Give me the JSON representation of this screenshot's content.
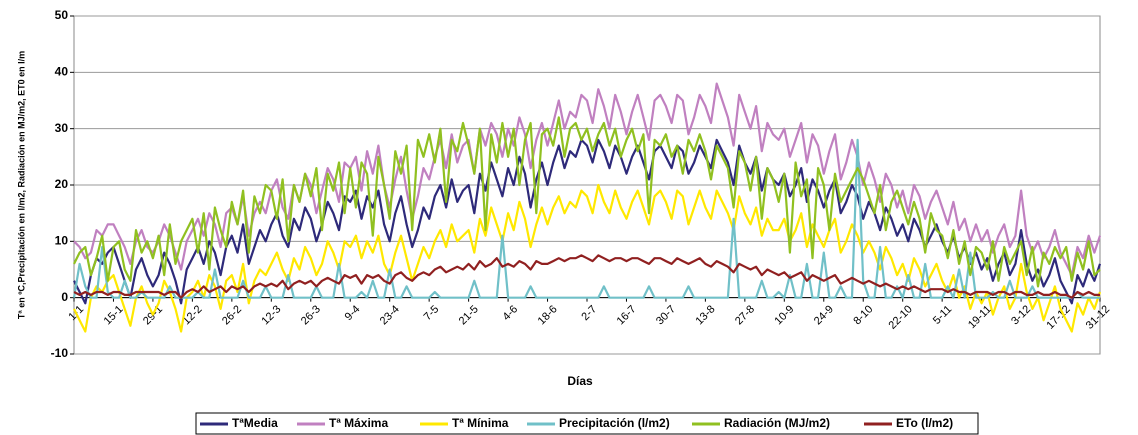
{
  "chart_data": {
    "type": "line",
    "xlabel": "Días",
    "ylabel": "Tª en ºC,Precipitación en l/m2, Radiación en MJ/m2, ET0 en l/m",
    "ylim": [
      -10,
      50
    ],
    "yticks": [
      -10,
      0,
      10,
      20,
      30,
      40,
      50
    ],
    "grid": true,
    "legend": "bottom",
    "categories": [
      "1-1",
      null,
      null,
      null,
      null,
      null,
      null,
      "15-1",
      null,
      null,
      null,
      null,
      null,
      null,
      "29-1",
      null,
      null,
      null,
      null,
      null,
      null,
      "12-2",
      null,
      null,
      null,
      null,
      null,
      null,
      "26-2",
      null,
      null,
      null,
      null,
      null,
      null,
      "12-3",
      null,
      null,
      null,
      null,
      null,
      null,
      "26-3",
      null,
      null,
      null,
      null,
      null,
      null,
      "9-4",
      null,
      null,
      null,
      null,
      null,
      null,
      "23-4",
      null,
      null,
      null,
      null,
      null,
      null,
      "7-5",
      null,
      null,
      null,
      null,
      null,
      null,
      "21-5",
      null,
      null,
      null,
      null,
      null,
      null,
      "4-6",
      null,
      null,
      null,
      null,
      null,
      null,
      "18-6",
      null,
      null,
      null,
      null,
      null,
      null,
      "2-7",
      null,
      null,
      null,
      null,
      null,
      null,
      "16-7",
      null,
      null,
      null,
      null,
      null,
      null,
      "30-7",
      null,
      null,
      null,
      null,
      null,
      null,
      "13-8",
      null,
      null,
      null,
      null,
      null,
      null,
      "27-8",
      null,
      null,
      null,
      null,
      null,
      null,
      "10-9",
      null,
      null,
      null,
      null,
      null,
      null,
      "24-9",
      null,
      null,
      null,
      null,
      null,
      null,
      "8-10",
      null,
      null,
      null,
      null,
      null,
      null,
      "22-10",
      null,
      null,
      null,
      null,
      null,
      null,
      "5-11",
      null,
      null,
      null,
      null,
      null,
      null,
      "19-11",
      null,
      null,
      null,
      null,
      null,
      null,
      "3-12",
      null,
      null,
      null,
      null,
      null,
      null,
      "17-12",
      null,
      null,
      null,
      null,
      null,
      null,
      "31-12"
    ],
    "series": [
      {
        "name": "TªMedia",
        "color": "#2e2a7a",
        "values": [
          3,
          1,
          -1,
          4,
          7,
          6,
          8,
          9,
          6,
          3,
          0,
          5,
          7,
          4,
          2,
          4,
          8,
          6,
          3,
          -1,
          5,
          7,
          9,
          6,
          10,
          8,
          4,
          9,
          11,
          8,
          13,
          6,
          9,
          12,
          10,
          13,
          15,
          11,
          9,
          14,
          12,
          16,
          14,
          10,
          13,
          17,
          15,
          12,
          18,
          17,
          19,
          14,
          18,
          16,
          19,
          13,
          10,
          15,
          18,
          13,
          9,
          12,
          16,
          14,
          18,
          20,
          16,
          21,
          17,
          19,
          20,
          15,
          22,
          19,
          24,
          21,
          18,
          23,
          20,
          25,
          22,
          16,
          21,
          24,
          20,
          24,
          27,
          23,
          26,
          25,
          28,
          27,
          24,
          28,
          26,
          23,
          27,
          25,
          22,
          25,
          27,
          24,
          21,
          26,
          27,
          25,
          23,
          27,
          26,
          22,
          24,
          27,
          25,
          23,
          28,
          26,
          24,
          20,
          27,
          24,
          22,
          25,
          19,
          23,
          21,
          20,
          22,
          18,
          20,
          23,
          17,
          21,
          19,
          16,
          19,
          21,
          15,
          17,
          20,
          18,
          14,
          17,
          15,
          12,
          16,
          14,
          11,
          13,
          10,
          14,
          12,
          9,
          11,
          13,
          10,
          8,
          11,
          7,
          9,
          6,
          8,
          5,
          7,
          3,
          6,
          8,
          4,
          6,
          12,
          6,
          3,
          5,
          2,
          4,
          7,
          3,
          1,
          -1,
          4,
          2,
          5,
          3,
          6
        ]
      },
      {
        "name": "Tª Máxima",
        "color": "#c080c0",
        "values": [
          10,
          9,
          7,
          8,
          12,
          11,
          13,
          13,
          11,
          9,
          6,
          10,
          12,
          9,
          8,
          10,
          13,
          11,
          8,
          5,
          10,
          12,
          14,
          11,
          15,
          13,
          9,
          15,
          16,
          13,
          18,
          11,
          15,
          17,
          15,
          19,
          21,
          16,
          14,
          20,
          17,
          22,
          20,
          15,
          19,
          23,
          21,
          17,
          24,
          23,
          25,
          19,
          26,
          22,
          27,
          20,
          16,
          21,
          25,
          19,
          14,
          18,
          23,
          21,
          25,
          28,
          23,
          29,
          24,
          27,
          28,
          22,
          30,
          27,
          31,
          29,
          25,
          30,
          27,
          32,
          29,
          23,
          28,
          31,
          27,
          31,
          35,
          30,
          33,
          32,
          36,
          35,
          31,
          37,
          34,
          30,
          36,
          33,
          29,
          33,
          36,
          32,
          28,
          35,
          36,
          34,
          31,
          36,
          35,
          29,
          32,
          36,
          34,
          31,
          38,
          35,
          32,
          27,
          36,
          33,
          30,
          34,
          26,
          31,
          29,
          28,
          30,
          25,
          28,
          31,
          24,
          29,
          27,
          22,
          26,
          29,
          21,
          24,
          28,
          25,
          20,
          24,
          21,
          17,
          22,
          20,
          16,
          19,
          15,
          20,
          18,
          14,
          17,
          19,
          16,
          13,
          17,
          12,
          14,
          10,
          13,
          10,
          12,
          8,
          11,
          13,
          9,
          11,
          19,
          11,
          8,
          10,
          7,
          9,
          12,
          8,
          6,
          4,
          9,
          7,
          11,
          8,
          11
        ]
      },
      {
        "name": "Tª Mínima",
        "color": "#ffe800",
        "values": [
          -2,
          -4,
          -6,
          0,
          2,
          1,
          3,
          4,
          1,
          -2,
          -5,
          0,
          2,
          -1,
          -3,
          -1,
          3,
          1,
          -2,
          -6,
          0,
          1,
          3,
          0,
          4,
          2,
          -2,
          3,
          4,
          1,
          6,
          -1,
          3,
          5,
          4,
          6,
          8,
          5,
          3,
          7,
          5,
          9,
          7,
          4,
          6,
          10,
          8,
          5,
          10,
          9,
          11,
          7,
          10,
          8,
          11,
          6,
          4,
          8,
          11,
          7,
          3,
          6,
          9,
          7,
          10,
          12,
          9,
          13,
          10,
          11,
          12,
          8,
          14,
          11,
          16,
          13,
          10,
          15,
          12,
          17,
          14,
          9,
          13,
          16,
          13,
          16,
          18,
          15,
          17,
          16,
          19,
          18,
          15,
          20,
          17,
          15,
          19,
          16,
          14,
          17,
          19,
          16,
          13,
          18,
          19,
          17,
          14,
          19,
          18,
          13,
          16,
          19,
          16,
          14,
          19,
          17,
          15,
          12,
          18,
          15,
          13,
          16,
          11,
          14,
          12,
          12,
          14,
          10,
          12,
          15,
          9,
          13,
          11,
          9,
          12,
          14,
          8,
          10,
          13,
          11,
          8,
          10,
          8,
          5,
          9,
          7,
          4,
          6,
          3,
          7,
          5,
          2,
          4,
          6,
          3,
          1,
          4,
          0,
          2,
          -2,
          1,
          -1,
          1,
          -3,
          0,
          2,
          -2,
          0,
          6,
          1,
          -2,
          0,
          -4,
          -1,
          2,
          -2,
          -4,
          -6,
          -1,
          -3,
          0,
          -2,
          1
        ]
      },
      {
        "name": "Precipitación (l/m2)",
        "color": "#70c0c8",
        "values": [
          0,
          6,
          2,
          0,
          0,
          9,
          1,
          0,
          0,
          3,
          0,
          0,
          1,
          0,
          0,
          0,
          0,
          2,
          0,
          0,
          0,
          0,
          1,
          0,
          0,
          5,
          0,
          0,
          0,
          0,
          3,
          0,
          0,
          0,
          2,
          0,
          0,
          0,
          4,
          0,
          0,
          0,
          0,
          2,
          0,
          0,
          0,
          6,
          0,
          0,
          0,
          1,
          0,
          3,
          0,
          0,
          5,
          0,
          0,
          2,
          0,
          0,
          0,
          0,
          1,
          0,
          0,
          0,
          0,
          0,
          0,
          3,
          0,
          0,
          0,
          0,
          11,
          0,
          0,
          0,
          0,
          2,
          0,
          0,
          0,
          0,
          0,
          0,
          0,
          0,
          0,
          0,
          0,
          0,
          2,
          0,
          0,
          0,
          0,
          0,
          0,
          0,
          2,
          0,
          0,
          0,
          0,
          0,
          0,
          2,
          0,
          0,
          0,
          0,
          0,
          0,
          0,
          14,
          0,
          0,
          0,
          0,
          3,
          0,
          0,
          1,
          0,
          4,
          0,
          0,
          6,
          0,
          0,
          8,
          0,
          0,
          2,
          0,
          0,
          28,
          3,
          0,
          0,
          9,
          0,
          0,
          2,
          0,
          4,
          0,
          0,
          6,
          0,
          0,
          0,
          2,
          0,
          5,
          0,
          8,
          0,
          0,
          0,
          1,
          0,
          0,
          3,
          0,
          0,
          0,
          2,
          0,
          0,
          0,
          0,
          0,
          0,
          0,
          1,
          0,
          0,
          0,
          0
        ]
      },
      {
        "name": "Radiación (MJ/m2)",
        "color": "#90c020",
        "values": [
          6,
          8,
          9,
          4,
          7,
          11,
          3,
          9,
          10,
          5,
          3,
          12,
          8,
          10,
          7,
          11,
          4,
          13,
          6,
          10,
          12,
          14,
          8,
          15,
          5,
          16,
          12,
          9,
          17,
          13,
          19,
          8,
          18,
          15,
          20,
          19,
          14,
          21,
          10,
          20,
          17,
          22,
          18,
          23,
          12,
          22,
          19,
          24,
          15,
          23,
          16,
          24,
          22,
          11,
          25,
          20,
          14,
          26,
          22,
          27,
          12,
          28,
          25,
          29,
          24,
          30,
          17,
          28,
          26,
          31,
          27,
          22,
          30,
          12,
          29,
          24,
          31,
          25,
          30,
          20,
          28,
          31,
          15,
          29,
          30,
          27,
          32,
          25,
          30,
          31,
          28,
          30,
          26,
          29,
          31,
          27,
          30,
          25,
          28,
          30,
          26,
          29,
          15,
          28,
          27,
          29,
          25,
          27,
          22,
          28,
          26,
          29,
          26,
          21,
          27,
          25,
          23,
          16,
          26,
          24,
          19,
          25,
          14,
          23,
          21,
          17,
          22,
          8,
          24,
          18,
          21,
          7,
          23,
          20,
          12,
          22,
          17,
          19,
          21,
          23,
          21,
          18,
          15,
          20,
          12,
          17,
          19,
          16,
          13,
          17,
          14,
          8,
          15,
          12,
          11,
          7,
          12,
          6,
          10,
          4,
          9,
          8,
          5,
          10,
          3,
          9,
          6,
          8,
          10,
          4,
          9,
          2,
          8,
          6,
          9,
          7,
          9,
          3,
          8,
          5,
          10,
          4,
          5
        ]
      },
      {
        "name": "ETo (l/m2)",
        "color": "#902020",
        "values": [
          1,
          0.5,
          1,
          0.5,
          1,
          1,
          0.5,
          1,
          1,
          0.5,
          0.5,
          1,
          1,
          1,
          1,
          1,
          0.5,
          1,
          1,
          0,
          1,
          1.5,
          1,
          2,
          1,
          1.5,
          2,
          1,
          2,
          1.5,
          2,
          1,
          2,
          2.5,
          2,
          2.5,
          2,
          3,
          1.5,
          2.5,
          3,
          2.5,
          3,
          2,
          3,
          3.5,
          3,
          2.5,
          4,
          3.5,
          4,
          2.5,
          4,
          3.5,
          4,
          3,
          2.5,
          4,
          4.5,
          3.5,
          3,
          4,
          4.5,
          4,
          5,
          5.5,
          4.5,
          5,
          5.5,
          5,
          6,
          5,
          6.5,
          5.5,
          6,
          7,
          5.5,
          6,
          5.5,
          6.5,
          6,
          5,
          6.5,
          6,
          6,
          6.5,
          7,
          6.5,
          7,
          7,
          7.5,
          7,
          6.5,
          7.5,
          7,
          6.5,
          7,
          7,
          6.5,
          7,
          7,
          6.5,
          6,
          7,
          7,
          6.5,
          6,
          7,
          6.5,
          6,
          6.5,
          7,
          6,
          5.5,
          6.5,
          6,
          5.5,
          4.5,
          6,
          5.5,
          5,
          5.5,
          4,
          5,
          4.5,
          4,
          4.5,
          3.5,
          4,
          4.5,
          3,
          4,
          3.5,
          3,
          3.5,
          4,
          2.5,
          3,
          3.5,
          3,
          2.5,
          3,
          2.5,
          2,
          2.5,
          2,
          1.5,
          2,
          1.5,
          2,
          1.5,
          1,
          1.5,
          1.5,
          1.5,
          1,
          1.5,
          1,
          1,
          0.5,
          1,
          1,
          1,
          0.5,
          1,
          1,
          0.5,
          1,
          1,
          0.5,
          0.5,
          1,
          0.5,
          0.5,
          1,
          0.5,
          0.5,
          0,
          1,
          0.5,
          1,
          0.5,
          0.5
        ]
      }
    ]
  }
}
